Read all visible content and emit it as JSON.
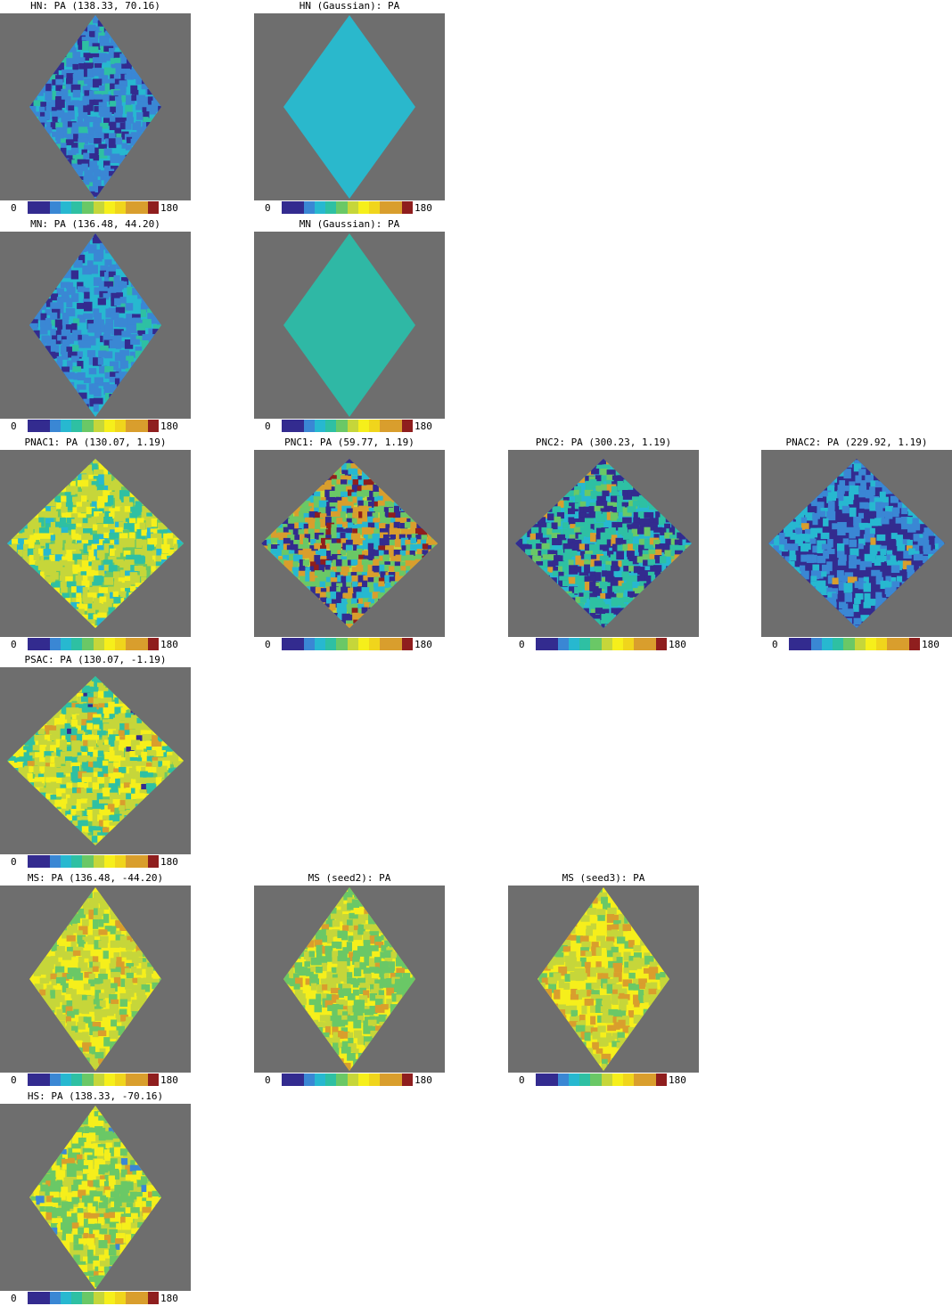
{
  "colormap": {
    "min_label": "0",
    "max_label": "180",
    "background": "#6e6e6e",
    "stops": [
      "#332b8f",
      "#332b8f",
      "#3a87d4",
      "#27b8d0",
      "#2ec0a3",
      "#6ac866",
      "#c6d63a",
      "#f6ef1b",
      "#f0d51c",
      "#d99e2d",
      "#d99e2d",
      "#8f1e1e"
    ]
  },
  "chart_data": [
    {
      "type": "heatmap",
      "title": "HN: PA (138.33, 70.16)",
      "shape": "tall",
      "base": "#27b8d0",
      "patches": [
        {
          "color": "#3a87d4",
          "level": 0.45
        },
        {
          "color": "#332b8f",
          "level": 0.18
        },
        {
          "color": "#2ec0a3",
          "level": 0.08
        }
      ],
      "color_range": [
        0,
        180
      ]
    },
    {
      "type": "heatmap",
      "title": "HN (Gaussian): PA",
      "shape": "tall",
      "base": "#2ab8cc",
      "patches": [],
      "color_range": [
        0,
        180
      ]
    },
    {
      "type": "heatmap",
      "title": "MN: PA (136.48, 44.20)",
      "shape": "tall",
      "base": "#27b8d0",
      "patches": [
        {
          "color": "#3a87d4",
          "level": 0.4
        },
        {
          "color": "#332b8f",
          "level": 0.1
        },
        {
          "color": "#2ec0a3",
          "level": 0.06
        }
      ],
      "color_range": [
        0,
        180
      ]
    },
    {
      "type": "heatmap",
      "title": "MN (Gaussian): PA",
      "shape": "tall",
      "base": "#2fb8a5",
      "patches": [],
      "color_range": [
        0,
        180
      ]
    },
    {
      "type": "heatmap",
      "title": "PNAC1: PA (130.07, 1.19)",
      "shape": "wide",
      "base": "#6ac866",
      "patches": [
        {
          "color": "#c6d63a",
          "level": 0.4
        },
        {
          "color": "#f6ef1b",
          "level": 0.22
        },
        {
          "color": "#2ec0a3",
          "level": 0.15
        },
        {
          "color": "#27b8d0",
          "level": 0.05
        }
      ],
      "color_range": [
        0,
        180
      ]
    },
    {
      "type": "heatmap",
      "title": "PNC1: PA (59.77, 1.19)",
      "shape": "wide",
      "base": "#c6d63a",
      "patches": [
        {
          "color": "#6ac866",
          "level": 0.3
        },
        {
          "color": "#d99e2d",
          "level": 0.25
        },
        {
          "color": "#332b8f",
          "level": 0.2
        },
        {
          "color": "#27b8d0",
          "level": 0.18
        },
        {
          "color": "#8f1e1e",
          "level": 0.05
        }
      ],
      "color_range": [
        0,
        180
      ]
    },
    {
      "type": "heatmap",
      "title": "PNC2: PA (300.23, 1.19)",
      "shape": "wide",
      "base": "#27b8d0",
      "patches": [
        {
          "color": "#332b8f",
          "level": 0.3
        },
        {
          "color": "#2ec0a3",
          "level": 0.25
        },
        {
          "color": "#6ac866",
          "level": 0.1
        },
        {
          "color": "#d99e2d",
          "level": 0.05
        }
      ],
      "color_range": [
        0,
        180
      ]
    },
    {
      "type": "heatmap",
      "title": "PNAC2: PA (229.92, 1.19)",
      "shape": "wide",
      "base": "#332b8f",
      "patches": [
        {
          "color": "#3a87d4",
          "level": 0.3
        },
        {
          "color": "#27b8d0",
          "level": 0.2
        },
        {
          "color": "#d99e2d",
          "level": 0.01
        }
      ],
      "color_range": [
        0,
        180
      ]
    },
    {
      "type": "heatmap",
      "title": "PSAC: PA (130.07, -1.19)",
      "shape": "wide",
      "base": "#6ac866",
      "patches": [
        {
          "color": "#c6d63a",
          "level": 0.4
        },
        {
          "color": "#f6ef1b",
          "level": 0.25
        },
        {
          "color": "#2ec0a3",
          "level": 0.2
        },
        {
          "color": "#d99e2d",
          "level": 0.05
        },
        {
          "color": "#332b8f",
          "level": 0.02
        }
      ],
      "color_range": [
        0,
        180
      ]
    },
    {
      "type": "heatmap",
      "title": "MS: PA (136.48, -44.20)",
      "shape": "tall",
      "base": "#f6ef1b",
      "patches": [
        {
          "color": "#c6d63a",
          "level": 0.35
        },
        {
          "color": "#6ac866",
          "level": 0.2
        },
        {
          "color": "#d99e2d",
          "level": 0.05
        }
      ],
      "color_range": [
        0,
        180
      ]
    },
    {
      "type": "heatmap",
      "title": "MS (seed2): PA",
      "shape": "tall",
      "base": "#f6ef1b",
      "patches": [
        {
          "color": "#6ac866",
          "level": 0.4
        },
        {
          "color": "#c6d63a",
          "level": 0.2
        },
        {
          "color": "#d99e2d",
          "level": 0.06
        }
      ],
      "color_range": [
        0,
        180
      ]
    },
    {
      "type": "heatmap",
      "title": "MS (seed3): PA",
      "shape": "tall",
      "base": "#f6ef1b",
      "patches": [
        {
          "color": "#c6d63a",
          "level": 0.25
        },
        {
          "color": "#d99e2d",
          "level": 0.12
        },
        {
          "color": "#6ac866",
          "level": 0.1
        }
      ],
      "color_range": [
        0,
        180
      ]
    },
    {
      "type": "heatmap",
      "title": "HS: PA (138.33, -70.16)",
      "shape": "tall",
      "base": "#c6d63a",
      "patches": [
        {
          "color": "#6ac866",
          "level": 0.35
        },
        {
          "color": "#f6ef1b",
          "level": 0.25
        },
        {
          "color": "#d99e2d",
          "level": 0.06
        },
        {
          "color": "#3a87d4",
          "level": 0.01
        }
      ],
      "color_range": [
        0,
        180
      ]
    }
  ]
}
